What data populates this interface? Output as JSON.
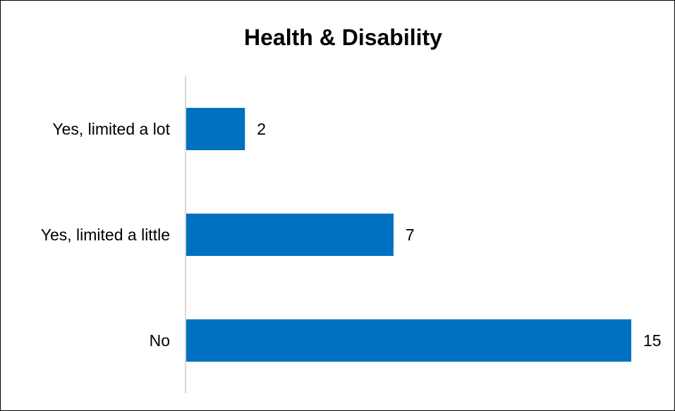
{
  "chart_data": {
    "type": "bar",
    "orientation": "horizontal",
    "title": "Health & Disability",
    "categories": [
      "Yes, limited a lot",
      "Yes, limited a little",
      "No"
    ],
    "values": [
      2,
      7,
      15
    ],
    "xlim": [
      0,
      15
    ],
    "bar_color": "#0070C0",
    "axis_color": "#D9D9D9",
    "grid": false,
    "legend": "none",
    "data_labels": true
  }
}
